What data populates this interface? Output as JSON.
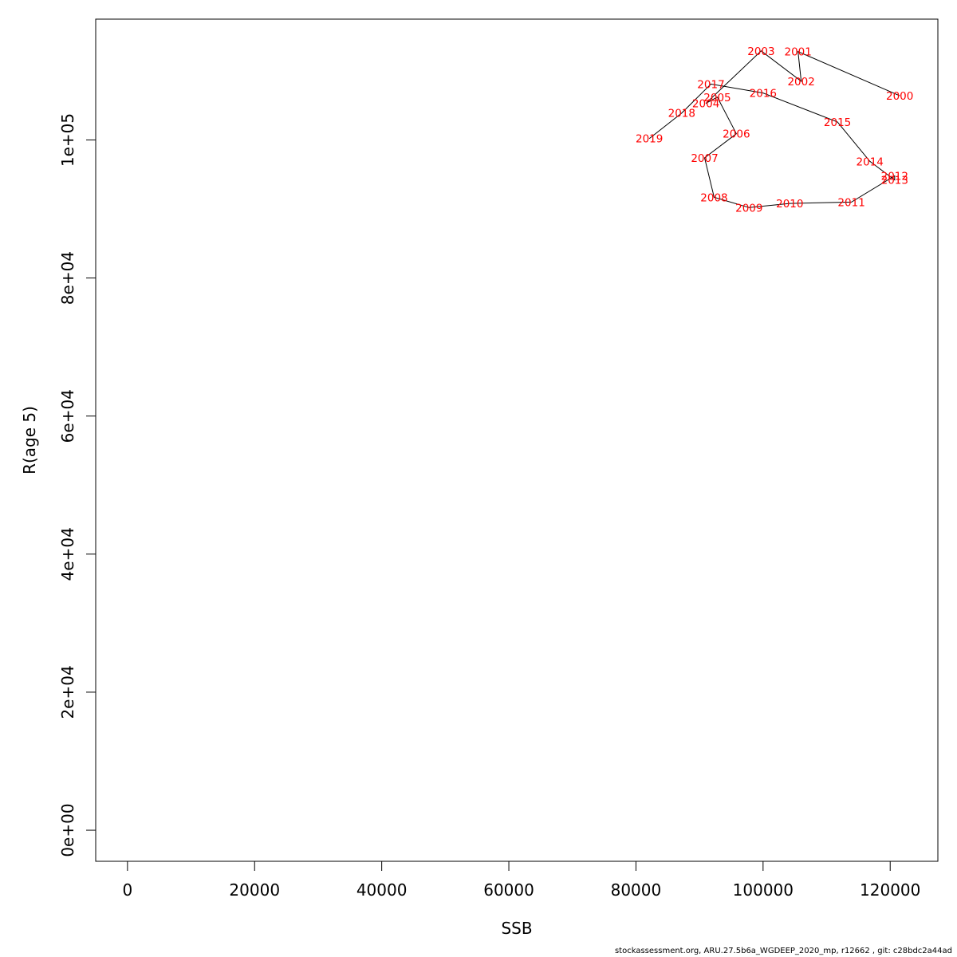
{
  "footer": "stockassessment.org, ARU.27.5b6a_WGDEEP_2020_mp, r12662 , git: c28bdc2a44ad",
  "chart_data": {
    "type": "line",
    "xlabel": "SSB",
    "ylabel": "R(age 5)",
    "xlim": [
      -5000,
      127500
    ],
    "ylim": [
      -4500,
      117500
    ],
    "xticks": [
      0,
      20000,
      40000,
      60000,
      80000,
      100000,
      120000
    ],
    "yticks": [
      0,
      20000,
      40000,
      60000,
      80000,
      100000
    ],
    "ytick_labels": [
      "0e+00",
      "2e+04",
      "4e+04",
      "6e+04",
      "8e+04",
      "1e+05"
    ],
    "line_color": "#000000",
    "label_color": "#ff0000",
    "points": [
      {
        "year": "2000",
        "x": 121500,
        "y": 106400
      },
      {
        "year": "2001",
        "x": 105500,
        "y": 112800
      },
      {
        "year": "2002",
        "x": 106000,
        "y": 108500
      },
      {
        "year": "2003",
        "x": 99700,
        "y": 112900
      },
      {
        "year": "2004",
        "x": 91000,
        "y": 105300
      },
      {
        "year": "2005",
        "x": 92800,
        "y": 106200
      },
      {
        "year": "2006",
        "x": 95800,
        "y": 100900
      },
      {
        "year": "2007",
        "x": 90800,
        "y": 97400
      },
      {
        "year": "2008",
        "x": 92300,
        "y": 91700
      },
      {
        "year": "2009",
        "x": 97800,
        "y": 90200
      },
      {
        "year": "2010",
        "x": 104200,
        "y": 90800
      },
      {
        "year": "2011",
        "x": 113900,
        "y": 91000
      },
      {
        "year": "2012",
        "x": 120700,
        "y": 94800
      },
      {
        "year": "2013",
        "x": 120700,
        "y": 94200
      },
      {
        "year": "2014",
        "x": 116800,
        "y": 96900
      },
      {
        "year": "2015",
        "x": 111700,
        "y": 102600
      },
      {
        "year": "2016",
        "x": 100000,
        "y": 106800
      },
      {
        "year": "2017",
        "x": 91800,
        "y": 108100
      },
      {
        "year": "2018",
        "x": 87200,
        "y": 103900
      },
      {
        "year": "2019",
        "x": 82100,
        "y": 100200
      }
    ]
  }
}
